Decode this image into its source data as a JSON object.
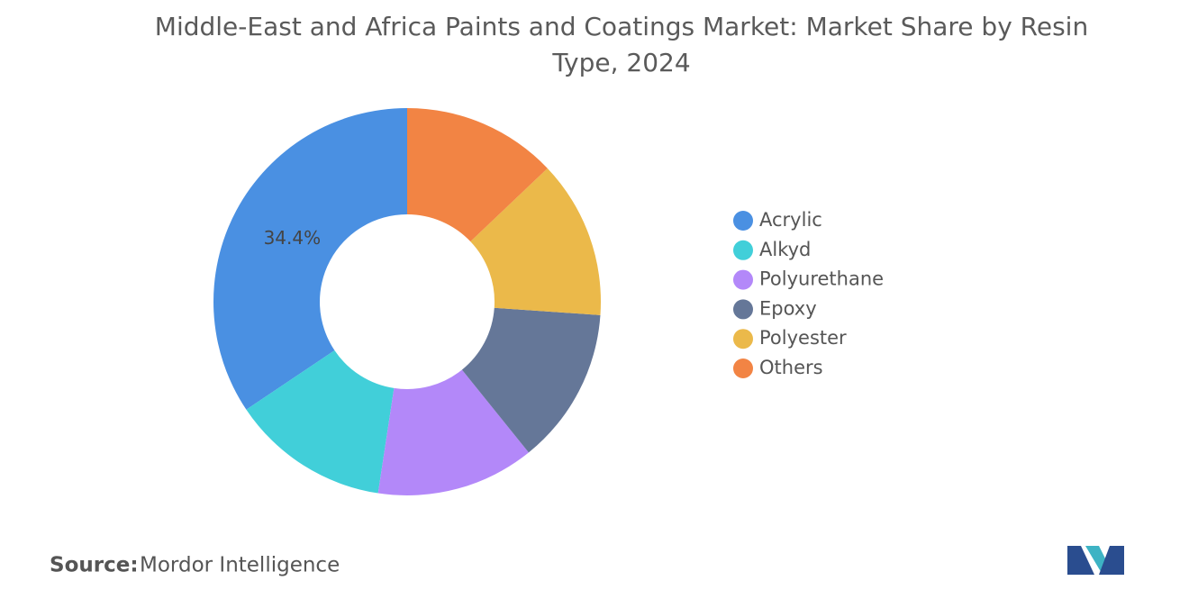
{
  "chart_data": {
    "type": "donut",
    "title": "Middle-East and Africa Paints and Coatings Market: Market Share by Resin Type, 2024",
    "categories": [
      "Acrylic",
      "Alkyd",
      "Polyurethane",
      "Epoxy",
      "Polyester",
      "Others"
    ],
    "values": [
      34.4,
      13.2,
      13.2,
      13.1,
      13.2,
      12.9
    ],
    "value_labels": [
      "34.4%",
      null,
      null,
      null,
      null,
      null
    ],
    "colors": [
      "#4a90e2",
      "#41cfd9",
      "#b388f9",
      "#657798",
      "#ebb94a",
      "#f28444"
    ],
    "legend": "right"
  },
  "source": {
    "label": "Source:",
    "value": "Mordor Intelligence"
  }
}
